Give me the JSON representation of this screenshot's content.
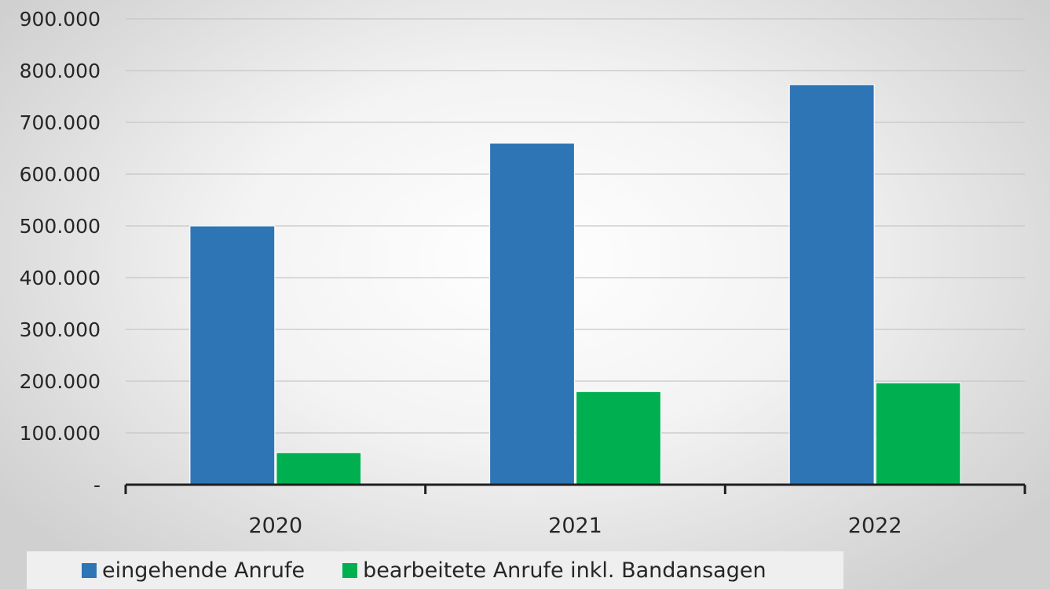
{
  "chart_data": {
    "type": "bar",
    "categories": [
      "2020",
      "2021",
      "2022"
    ],
    "series": [
      {
        "name": "eingehende Anrufe",
        "values": [
          500000,
          660000,
          773000
        ],
        "color": "#2e75b6"
      },
      {
        "name": "bearbeitete Anrufe inkl. Bandansagen",
        "values": [
          62000,
          180000,
          197000
        ],
        "color": "#00b050"
      }
    ],
    "ylim": [
      0,
      900000
    ],
    "y_ticks": [
      0,
      100000,
      200000,
      300000,
      400000,
      500000,
      600000,
      700000,
      800000,
      900000
    ],
    "y_tick_labels": [
      "-",
      "100.000",
      "200.000",
      "300.000",
      "400.000",
      "500.000",
      "600.000",
      "700.000",
      "800.000",
      "900.000"
    ],
    "grid": true,
    "legend": "bottom-left",
    "title": "",
    "xlabel": "",
    "ylabel": ""
  }
}
